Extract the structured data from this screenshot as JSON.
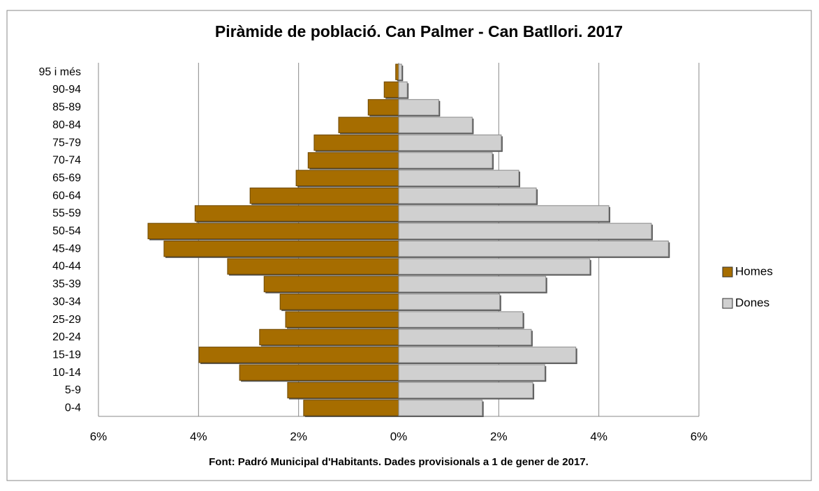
{
  "chart_data": {
    "type": "pyramid",
    "title": "Piràmide de població. Can Palmer - Can Batllori. 2017",
    "x_label": "Font: Padró Municipal  d'Habitants. Dades provisionals  a 1 de gener de 2017.",
    "categories": [
      "95 i més",
      "90-94",
      "85-89",
      "80-84",
      "75-79",
      "70-74",
      "65-69",
      "60-64",
      "55-59",
      "50-54",
      "45-49",
      "40-44",
      "35-39",
      "30-34",
      "25-29",
      "20-24",
      "15-19",
      "10-14",
      "5-9",
      "0-4"
    ],
    "series": [
      {
        "name": "Homes",
        "color": "#a66d00",
        "values": [
          -0.06,
          -0.29,
          -0.61,
          -1.2,
          -1.69,
          -1.81,
          -2.05,
          -2.97,
          -4.07,
          -5.01,
          -4.69,
          -3.42,
          -2.69,
          -2.37,
          -2.26,
          -2.78,
          -3.99,
          -3.18,
          -2.22,
          -1.9
        ]
      },
      {
        "name": "Dones",
        "color": "#d0d0d0",
        "values": [
          0.06,
          0.17,
          0.8,
          1.47,
          2.05,
          1.87,
          2.4,
          2.75,
          4.2,
          5.05,
          5.39,
          3.82,
          2.94,
          2.02,
          2.48,
          2.65,
          3.54,
          2.92,
          2.68,
          1.67
        ]
      }
    ],
    "xlim": [
      -6,
      6
    ],
    "xticks": [
      {
        "value": -6,
        "label": "6%"
      },
      {
        "value": -4,
        "label": "4%"
      },
      {
        "value": -2,
        "label": "2%"
      },
      {
        "value": 0,
        "label": "0%"
      },
      {
        "value": 2,
        "label": "2%"
      },
      {
        "value": 4,
        "label": "4%"
      },
      {
        "value": 6,
        "label": "6%"
      }
    ],
    "grid": true,
    "legend": "right"
  }
}
